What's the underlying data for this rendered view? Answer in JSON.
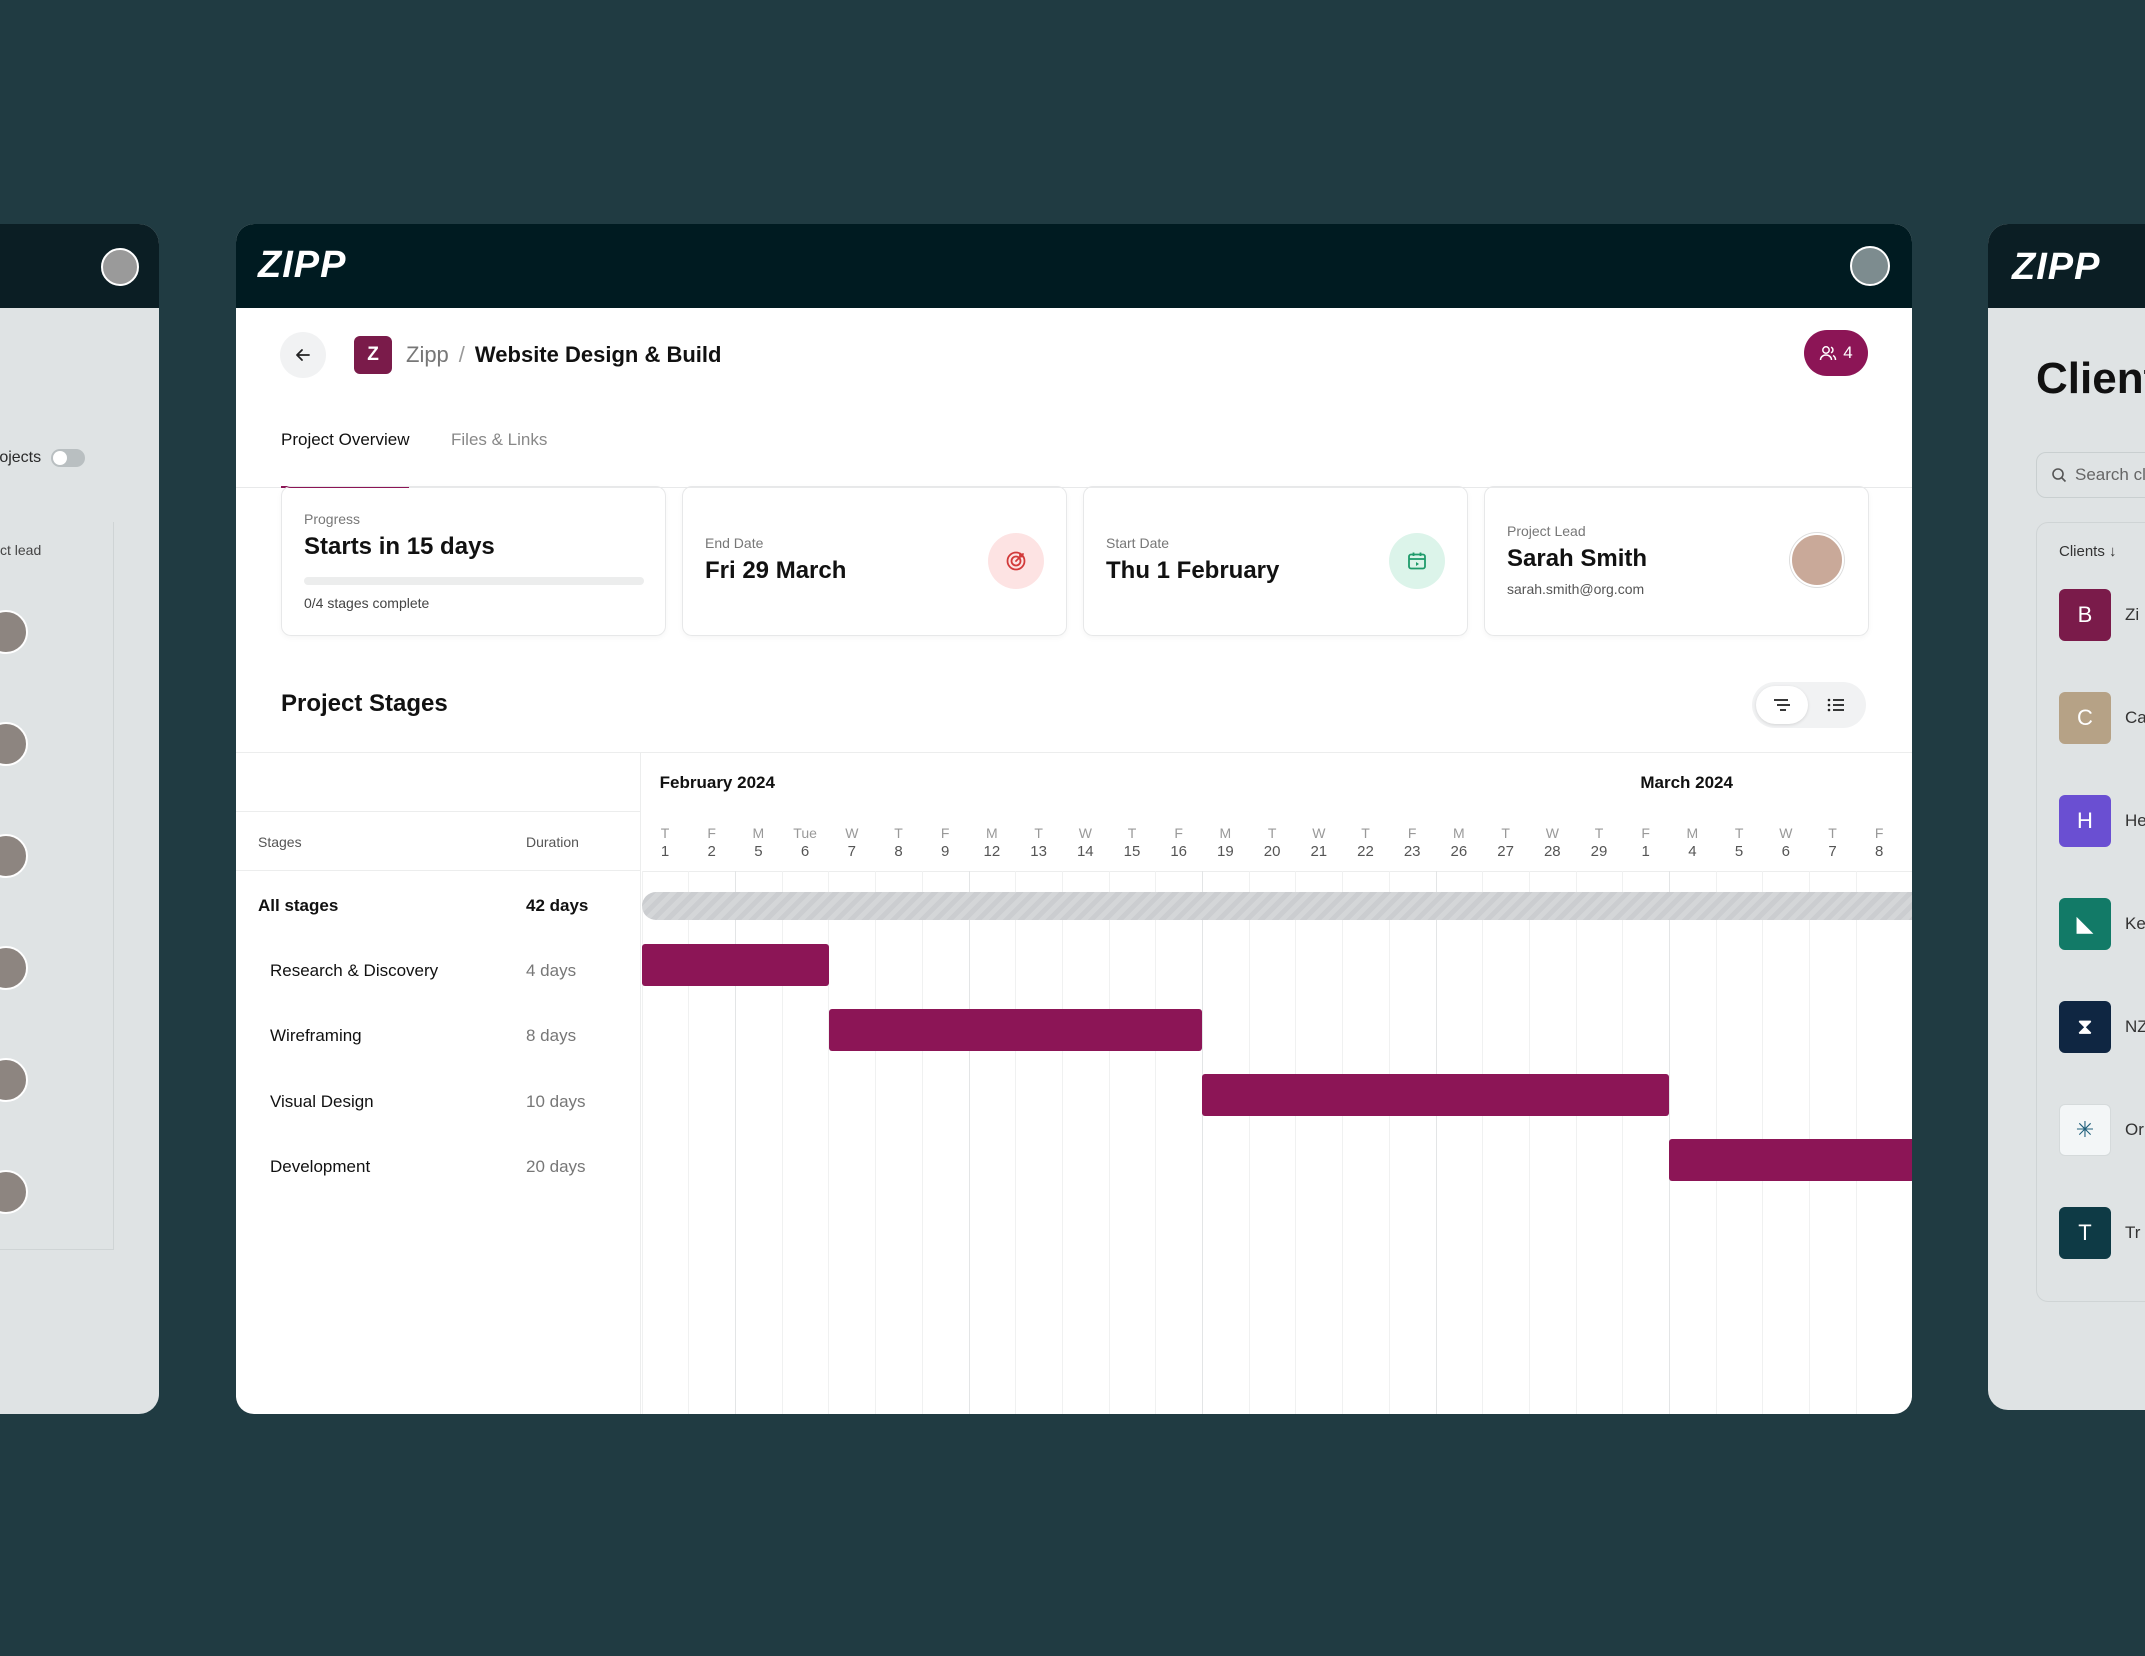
{
  "left_window": {
    "toggle_label": "rojects",
    "column_label": "ct lead"
  },
  "right_window": {
    "logo": "ZIPP",
    "title": "Client",
    "search_placeholder": "Search cl",
    "clients_header": "Clients ↓",
    "clients": [
      {
        "initial": "B",
        "name": "Zi",
        "color": "#7a1b4a"
      },
      {
        "initial": "C",
        "name": "Ca",
        "color": "#b6a286"
      },
      {
        "initial": "H",
        "name": "He",
        "color": "#6a4fd2"
      },
      {
        "initial": "◣",
        "name": "Ke",
        "color": "#127a67"
      },
      {
        "initial": "⧗",
        "name": "NZ",
        "color": "#0f2642"
      },
      {
        "initial": "✳",
        "name": "Or",
        "color": "#f3f6f7"
      },
      {
        "initial": "T",
        "name": "Tr",
        "color": "#0e3a45"
      }
    ]
  },
  "header": {
    "logo": "ZIPP"
  },
  "breadcrumb": {
    "badge": "Z",
    "parent": "Zipp",
    "separator": "/",
    "current": "Website Design & Build"
  },
  "members": {
    "count": "4"
  },
  "tabs": [
    {
      "label": "Project Overview",
      "active": true
    },
    {
      "label": "Files & Links",
      "active": false
    }
  ],
  "cards": {
    "progress": {
      "label": "Progress",
      "value": "Starts in 15 days",
      "sub": "0/4 stages complete",
      "fraction": 0
    },
    "end_date": {
      "label": "End Date",
      "value": "Fri 29 March",
      "icon": "target-icon"
    },
    "start_date": {
      "label": "Start Date",
      "value": "Thu 1 February",
      "icon": "calendar-icon"
    },
    "project_lead": {
      "label": "Project Lead",
      "value": "Sarah Smith",
      "sub": "sarah.smith@org.com"
    }
  },
  "stages": {
    "title": "Project Stages",
    "col_stages": "Stages",
    "col_duration": "Duration",
    "all": {
      "name": "All stages",
      "duration": "42 days"
    },
    "rows": [
      {
        "name": "Research & Discovery",
        "duration": "4 days",
        "start_index": 0,
        "span": 4
      },
      {
        "name": "Wireframing",
        "duration": "8 days",
        "start_index": 4,
        "span": 8
      },
      {
        "name": "Visual Design",
        "duration": "10 days",
        "start_index": 12,
        "span": 10
      },
      {
        "name": "Development",
        "duration": "20 days",
        "start_index": 22,
        "span": 20
      }
    ]
  },
  "timeline": {
    "months": [
      {
        "label": "February 2024",
        "start_index": 0
      },
      {
        "label": "March 2024",
        "start_index": 21
      }
    ],
    "days": [
      {
        "w": "T",
        "n": "1"
      },
      {
        "w": "F",
        "n": "2"
      },
      {
        "w": "M",
        "n": "5"
      },
      {
        "w": "Tue",
        "n": "6"
      },
      {
        "w": "W",
        "n": "7"
      },
      {
        "w": "T",
        "n": "8"
      },
      {
        "w": "F",
        "n": "9"
      },
      {
        "w": "M",
        "n": "12"
      },
      {
        "w": "T",
        "n": "13"
      },
      {
        "w": "W",
        "n": "14"
      },
      {
        "w": "T",
        "n": "15"
      },
      {
        "w": "F",
        "n": "16"
      },
      {
        "w": "M",
        "n": "19"
      },
      {
        "w": "T",
        "n": "20"
      },
      {
        "w": "W",
        "n": "21"
      },
      {
        "w": "T",
        "n": "22"
      },
      {
        "w": "F",
        "n": "23"
      },
      {
        "w": "M",
        "n": "26"
      },
      {
        "w": "T",
        "n": "27"
      },
      {
        "w": "W",
        "n": "28"
      },
      {
        "w": "T",
        "n": "29"
      },
      {
        "w": "F",
        "n": "1"
      },
      {
        "w": "M",
        "n": "4"
      },
      {
        "w": "T",
        "n": "5"
      },
      {
        "w": "W",
        "n": "6"
      },
      {
        "w": "T",
        "n": "7"
      },
      {
        "w": "F",
        "n": "8"
      }
    ]
  },
  "colors": {
    "accent": "#8c1556",
    "topbar": "#001b21",
    "background": "#203b42"
  }
}
